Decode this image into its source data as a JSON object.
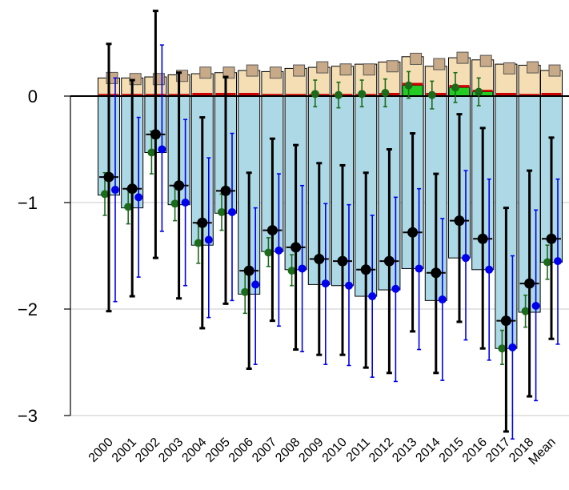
{
  "chart_data": {
    "type": "bar",
    "title": "",
    "xlabel": "",
    "ylabel": "",
    "ylim": [
      -3.15,
      0.6
    ],
    "grid": true,
    "categories": [
      "2000",
      "2001",
      "2002",
      "2003",
      "2004",
      "2005",
      "2006",
      "2007",
      "2008",
      "2009",
      "2010",
      "2011",
      "2012",
      "2013",
      "2014",
      "2015",
      "2016",
      "2017",
      "2018",
      "Mean"
    ],
    "y_ticks": [
      {
        "value": 0,
        "label": "0"
      },
      {
        "value": -1,
        "label": "−1"
      },
      {
        "value": -2,
        "label": "−2"
      },
      {
        "value": -3,
        "label": "−3"
      }
    ],
    "colors": {
      "positive_bar": "#f5deb3",
      "negative_bar": "#add8e6",
      "red_band": "#cc0000",
      "green_band": "#22cc22",
      "square_marker": "#c8aa88",
      "black_series": "#000000",
      "green_series": "#1a6b1a",
      "blue_series": "#0000ee",
      "grid": "#d3d3d3"
    },
    "positive_bars": [
      0.17,
      0.17,
      0.18,
      0.2,
      0.21,
      0.22,
      0.24,
      0.23,
      0.26,
      0.27,
      0.28,
      0.3,
      0.32,
      0.37,
      0.28,
      0.36,
      0.34,
      0.3,
      0.29,
      0.24
    ],
    "positive_markers": [
      0.17,
      0.16,
      0.16,
      0.19,
      0.22,
      0.22,
      0.24,
      0.22,
      0.24,
      0.27,
      0.25,
      0.25,
      0.28,
      0.35,
      0.3,
      0.36,
      0.33,
      0.26,
      0.27,
      0.24
    ],
    "red_bands": [
      0.02,
      0.02,
      0.02,
      0.02,
      0.03,
      0.03,
      0.03,
      0.02,
      0.02,
      0.02,
      0.02,
      0.02,
      0.03,
      0.12,
      0.03,
      0.12,
      0.05,
      0.03,
      0.02,
      0.03
    ],
    "green_bands": [
      0,
      0,
      0,
      0,
      0,
      0,
      0,
      0,
      0,
      0,
      0,
      0,
      0,
      0.1,
      0,
      0.08,
      0.04,
      0,
      0,
      0
    ],
    "negative_bars": [
      -0.93,
      -1.05,
      -0.53,
      -1.02,
      -1.4,
      -1.1,
      -1.86,
      -1.46,
      -1.63,
      -1.77,
      -1.78,
      -1.88,
      -1.82,
      -1.62,
      -1.92,
      -1.52,
      -1.63,
      -2.37,
      -2.03,
      -1.56
    ],
    "series": [
      {
        "values": [
          -0.76,
          -0.87,
          -0.36,
          -0.84,
          -1.19,
          -0.89,
          -1.64,
          -1.26,
          -1.42,
          -1.53,
          -1.55,
          -1.63,
          -1.55,
          -1.28,
          -1.66,
          -1.17,
          -1.34,
          -2.11,
          -1.76,
          -1.34
        ],
        "err_low": [
          -2.02,
          -1.88,
          -1.52,
          -1.9,
          -2.18,
          -1.95,
          -2.56,
          -2.11,
          -2.38,
          -2.43,
          -2.43,
          -2.55,
          -2.6,
          -2.21,
          -2.6,
          -2.12,
          -2.37,
          -3.15,
          -2.82,
          -2.28
        ],
        "err_high": [
          0.49,
          0.15,
          0.8,
          0.22,
          -0.2,
          0.18,
          -0.72,
          -0.4,
          -0.46,
          -0.63,
          -0.65,
          -0.72,
          -0.5,
          -0.35,
          -0.73,
          -0.17,
          -0.3,
          -1.05,
          -0.7,
          -0.39
        ]
      },
      {
        "values": [
          -0.92,
          -1.04,
          -0.53,
          -1.01,
          -1.38,
          -1.09,
          -1.84,
          -1.47,
          -1.64,
          0.02,
          0.01,
          0.02,
          0.03,
          0.1,
          0.01,
          0.08,
          0.04,
          -2.37,
          -2.02,
          -1.56
        ],
        "err_low": [
          -1.12,
          -1.2,
          -0.73,
          -1.17,
          -1.57,
          -1.26,
          -2.04,
          -1.6,
          -1.78,
          -0.1,
          -0.11,
          -0.1,
          -0.1,
          -0.02,
          -0.12,
          -0.06,
          -0.09,
          -2.52,
          -2.17,
          -1.72
        ],
        "err_high": [
          -0.72,
          -0.88,
          -0.33,
          -0.85,
          -1.2,
          -0.92,
          -1.64,
          -1.33,
          -1.49,
          0.15,
          0.13,
          0.15,
          0.16,
          0.23,
          0.14,
          0.22,
          0.17,
          -2.2,
          -1.87,
          -1.4
        ]
      },
      {
        "values": [
          -0.88,
          -0.95,
          -0.5,
          -1.0,
          -1.35,
          -1.09,
          -1.77,
          -1.45,
          -1.62,
          -1.76,
          -1.78,
          -1.88,
          -1.81,
          -1.62,
          -1.91,
          -1.52,
          -1.63,
          -2.36,
          -1.97,
          -1.55
        ],
        "err_low": [
          -1.93,
          -1.7,
          -1.27,
          -1.78,
          -2.08,
          -1.92,
          -2.52,
          -2.16,
          -2.4,
          -2.52,
          -2.53,
          -2.64,
          -2.68,
          -2.38,
          -2.67,
          -2.29,
          -2.48,
          -3.22,
          -2.86,
          -2.33
        ],
        "err_high": [
          0.17,
          -0.2,
          0.48,
          -0.22,
          -0.58,
          -0.35,
          -1.05,
          -0.73,
          -0.84,
          -1.01,
          -1.02,
          -1.12,
          -0.95,
          -0.87,
          -1.15,
          -0.7,
          -0.78,
          -1.5,
          -1.07,
          -0.78
        ]
      }
    ]
  }
}
